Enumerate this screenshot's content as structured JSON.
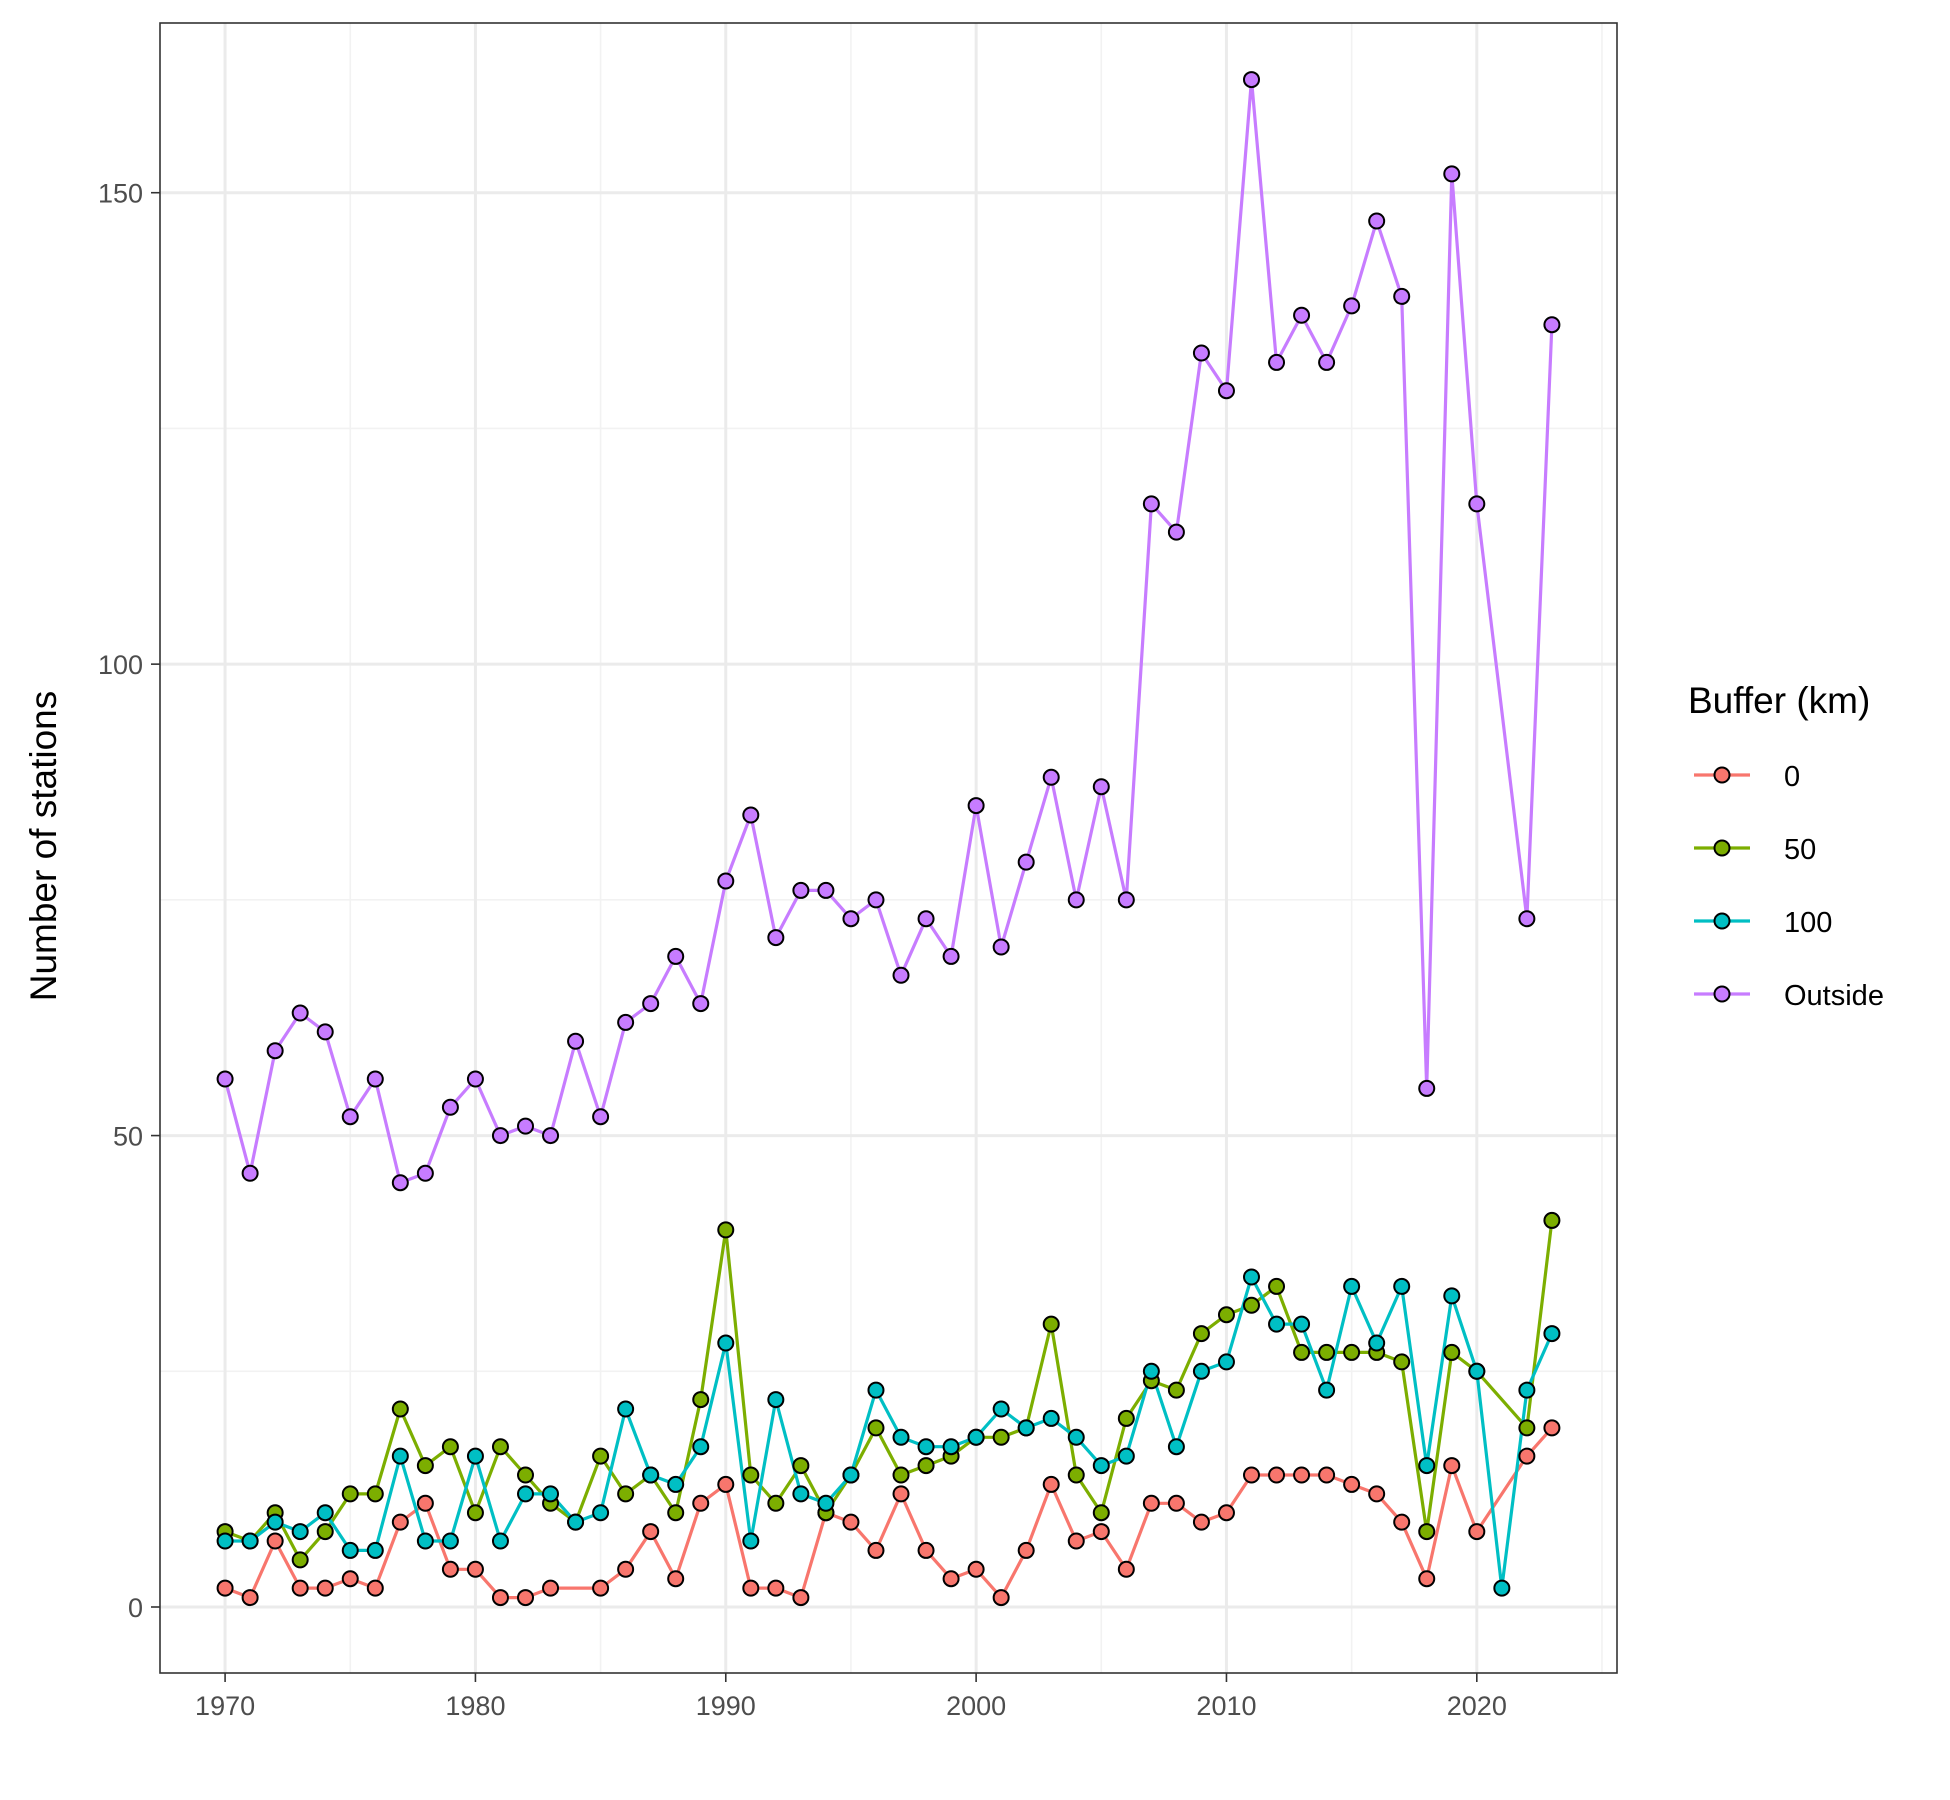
{
  "chart_data": {
    "type": "line",
    "title": "",
    "xlabel": "",
    "ylabel": "Number of stations",
    "xlim": [
      1967.4,
      2025.6
    ],
    "ylim": [
      -7,
      168
    ],
    "x_ticks": [
      1970,
      1980,
      1990,
      2000,
      2010,
      2020
    ],
    "y_ticks": [
      0,
      50,
      100,
      150
    ],
    "grid": true,
    "legend": {
      "title": "Buffer (km)",
      "placement": "right"
    },
    "series": [
      {
        "name": "0",
        "color": "#F8766D",
        "x": [
          1970,
          1971,
          1972,
          1973,
          1974,
          1975,
          1976,
          1977,
          1978,
          1979,
          1980,
          1981,
          1982,
          1983,
          1985,
          1986,
          1987,
          1988,
          1989,
          1990,
          1991,
          1992,
          1993,
          1994,
          1995,
          1996,
          1997,
          1998,
          1999,
          2000,
          2001,
          2002,
          2003,
          2004,
          2005,
          2006,
          2007,
          2008,
          2009,
          2010,
          2011,
          2012,
          2013,
          2014,
          2015,
          2016,
          2017,
          2018,
          2019,
          2020,
          2022,
          2023
        ],
        "values": [
          2,
          1,
          7,
          2,
          2,
          3,
          2,
          9,
          11,
          4,
          4,
          1,
          1,
          2,
          2,
          4,
          8,
          3,
          11,
          13,
          2,
          2,
          1,
          10,
          9,
          6,
          12,
          6,
          3,
          4,
          1,
          6,
          13,
          7,
          8,
          4,
          11,
          11,
          9,
          10,
          14,
          14,
          14,
          14,
          13,
          12,
          9,
          3,
          15,
          8,
          16,
          19
        ]
      },
      {
        "name": "50",
        "color": "#7CAE00",
        "x": [
          1970,
          1971,
          1972,
          1973,
          1974,
          1975,
          1976,
          1977,
          1978,
          1979,
          1980,
          1981,
          1982,
          1983,
          1984,
          1985,
          1986,
          1987,
          1988,
          1989,
          1990,
          1991,
          1992,
          1993,
          1994,
          1995,
          1996,
          1997,
          1998,
          1999,
          2000,
          2001,
          2002,
          2003,
          2004,
          2005,
          2006,
          2007,
          2008,
          2009,
          2010,
          2011,
          2012,
          2013,
          2014,
          2015,
          2016,
          2017,
          2018,
          2019,
          2020,
          2022,
          2023
        ],
        "values": [
          8,
          7,
          10,
          5,
          8,
          12,
          12,
          21,
          15,
          17,
          10,
          17,
          14,
          11,
          9,
          16,
          12,
          14,
          10,
          22,
          40,
          14,
          11,
          15,
          10,
          14,
          19,
          14,
          15,
          16,
          18,
          18,
          19,
          30,
          14,
          10,
          20,
          24,
          23,
          29,
          31,
          32,
          34,
          27,
          27,
          27,
          27,
          26,
          8,
          27,
          25,
          19,
          41
        ]
      },
      {
        "name": "100",
        "color": "#00BFC4",
        "x": [
          1970,
          1971,
          1972,
          1973,
          1974,
          1975,
          1976,
          1977,
          1978,
          1979,
          1980,
          1981,
          1982,
          1983,
          1984,
          1985,
          1986,
          1987,
          1988,
          1989,
          1990,
          1991,
          1992,
          1993,
          1994,
          1995,
          1996,
          1997,
          1998,
          1999,
          2000,
          2001,
          2002,
          2003,
          2004,
          2005,
          2006,
          2007,
          2008,
          2009,
          2010,
          2011,
          2012,
          2013,
          2014,
          2015,
          2016,
          2017,
          2018,
          2019,
          2020,
          2021,
          2022,
          2023
        ],
        "values": [
          7,
          7,
          9,
          8,
          10,
          6,
          6,
          16,
          7,
          7,
          16,
          7,
          12,
          12,
          9,
          10,
          21,
          14,
          13,
          17,
          28,
          7,
          22,
          12,
          11,
          14,
          23,
          18,
          17,
          17,
          18,
          21,
          19,
          20,
          18,
          15,
          16,
          25,
          17,
          25,
          26,
          35,
          30,
          30,
          23,
          34,
          28,
          34,
          15,
          33,
          25,
          2,
          23,
          29
        ]
      },
      {
        "name": "Outside",
        "color": "#C77CFF",
        "x": [
          1970,
          1971,
          1972,
          1973,
          1974,
          1975,
          1976,
          1977,
          1978,
          1979,
          1980,
          1981,
          1982,
          1983,
          1984,
          1985,
          1986,
          1987,
          1988,
          1989,
          1990,
          1991,
          1992,
          1993,
          1994,
          1995,
          1996,
          1997,
          1998,
          1999,
          2000,
          2001,
          2002,
          2003,
          2004,
          2005,
          2006,
          2007,
          2008,
          2009,
          2010,
          2011,
          2012,
          2013,
          2014,
          2015,
          2016,
          2017,
          2018,
          2019,
          2020,
          2022,
          2023
        ],
        "values": [
          56,
          46,
          59,
          63,
          61,
          52,
          56,
          45,
          46,
          53,
          56,
          50,
          51,
          50,
          60,
          52,
          62,
          64,
          69,
          64,
          77,
          84,
          71,
          76,
          76,
          73,
          75,
          67,
          73,
          69,
          85,
          70,
          79,
          88,
          75,
          87,
          75,
          117,
          114,
          133,
          129,
          162,
          132,
          137,
          132,
          138,
          147,
          139,
          55,
          152,
          117,
          73,
          136
        ]
      }
    ]
  }
}
